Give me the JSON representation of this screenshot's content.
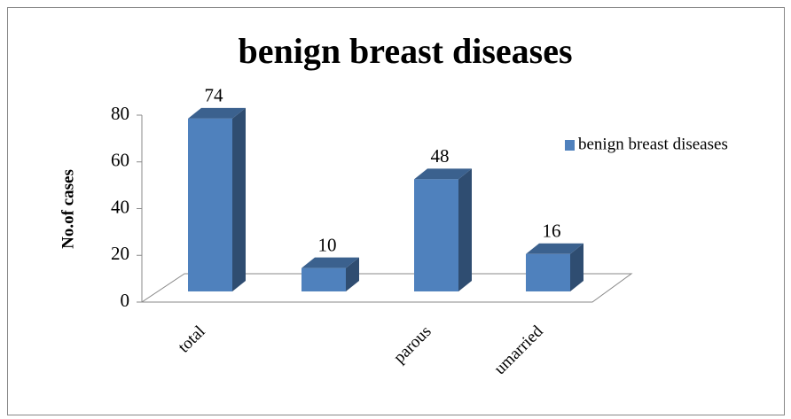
{
  "chart_data": {
    "type": "bar3d",
    "title": "benign breast diseases",
    "y_label": "No.of cases",
    "categories": [
      "total",
      null,
      "parous",
      "umarried"
    ],
    "series": [
      {
        "name": "benign breast diseases",
        "color": "#4f81bd",
        "values": [
          74,
          10,
          48,
          16
        ]
      }
    ],
    "ylim": [
      0,
      80
    ],
    "yticks": [
      0,
      20,
      40,
      60,
      80
    ],
    "legend": "right"
  }
}
